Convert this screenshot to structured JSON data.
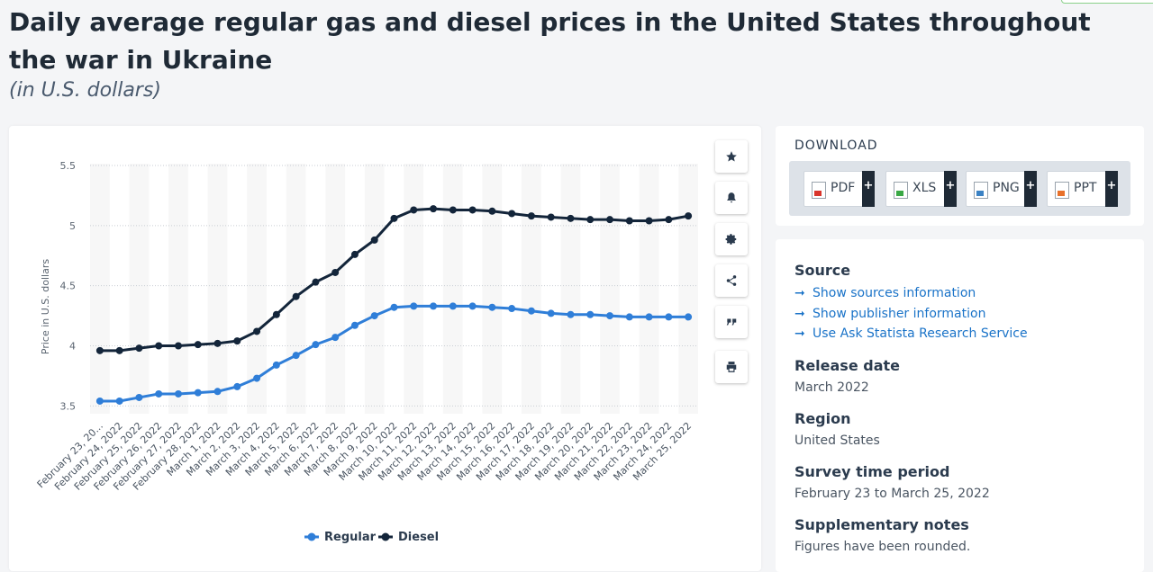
{
  "page": {
    "title": "Daily average regular gas and diesel prices in the United States throughout the war in Ukraine",
    "subtitle": "(in U.S. dollars)"
  },
  "toolbar": {
    "icons": [
      "star-icon",
      "bell-icon",
      "gear-icon",
      "share-icon",
      "quote-icon",
      "print-icon"
    ]
  },
  "download": {
    "heading": "DOWNLOAD",
    "buttons": [
      {
        "label": "PDF",
        "plus": "+",
        "color": "#d9342b"
      },
      {
        "label": "XLS",
        "plus": "+",
        "color": "#3aa845"
      },
      {
        "label": "PNG",
        "plus": "+",
        "color": "#3b82c4"
      },
      {
        "label": "PPT",
        "plus": "+",
        "color": "#e8712b"
      }
    ]
  },
  "info": {
    "source_heading": "Source",
    "links": [
      "Show sources information",
      "Show publisher information",
      "Use Ask Statista Research Service"
    ],
    "release_heading": "Release date",
    "release_value": "March 2022",
    "region_heading": "Region",
    "region_value": "United States",
    "survey_heading": "Survey time period",
    "survey_value": "February 23 to March 25, 2022",
    "notes_heading": "Supplementary notes",
    "notes_value": "Figures have been rounded."
  },
  "chart_data": {
    "type": "line",
    "title": "",
    "xlabel": "",
    "ylabel": "Price in U.S. dollars",
    "ylim": [
      3.5,
      5.5
    ],
    "yticks": [
      "3.5",
      "4",
      "4.5",
      "5",
      "5.5"
    ],
    "grid": true,
    "legend_position": "bottom",
    "categories": [
      "February 23, 20...",
      "February 24, 2022",
      "February 25, 2022",
      "February 26, 2022",
      "February 27, 2022",
      "February 28, 2022",
      "March 1, 2022",
      "March 2, 2022",
      "March 3, 2022",
      "March 4, 2022",
      "March 5, 2022",
      "March 6, 2022",
      "March 7, 2022",
      "March 8, 2022",
      "March 9, 2022",
      "March 10, 2022",
      "March 11, 2022",
      "March 12, 2022",
      "March 13, 2022",
      "March 14, 2022",
      "March 15, 2022",
      "March 16, 2022",
      "March 17, 2022",
      "March 18, 2022",
      "March 19, 2022",
      "March 20, 2022",
      "March 21, 2022",
      "March 22, 2022",
      "March 23, 2022",
      "March 24, 2022",
      "March 25, 2022"
    ],
    "series": [
      {
        "name": "Regular",
        "color": "#2f7ed8",
        "values": [
          3.54,
          3.54,
          3.57,
          3.6,
          3.6,
          3.61,
          3.62,
          3.66,
          3.73,
          3.84,
          3.92,
          4.01,
          4.07,
          4.17,
          4.25,
          4.32,
          4.33,
          4.33,
          4.33,
          4.33,
          4.32,
          4.31,
          4.29,
          4.27,
          4.26,
          4.26,
          4.25,
          4.24,
          4.24,
          4.24,
          4.24
        ]
      },
      {
        "name": "Diesel",
        "color": "#13253a",
        "values": [
          3.96,
          3.96,
          3.98,
          4.0,
          4.0,
          4.01,
          4.02,
          4.04,
          4.12,
          4.26,
          4.41,
          4.53,
          4.61,
          4.76,
          4.88,
          5.06,
          5.13,
          5.14,
          5.13,
          5.13,
          5.12,
          5.1,
          5.08,
          5.07,
          5.06,
          5.05,
          5.05,
          5.04,
          5.04,
          5.05,
          5.08
        ]
      }
    ]
  }
}
